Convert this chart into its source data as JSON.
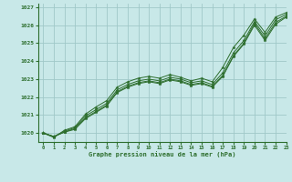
{
  "title": "Graphe pression niveau de la mer (hPa)",
  "background_color": "#c8e8e8",
  "grid_color": "#a0c8c8",
  "line_color": "#2d6e2d",
  "marker_color": "#2d6e2d",
  "xlim": [
    -0.5,
    23
  ],
  "ylim": [
    1019.5,
    1027.2
  ],
  "xticks": [
    0,
    1,
    2,
    3,
    4,
    5,
    6,
    7,
    8,
    9,
    10,
    11,
    12,
    13,
    14,
    15,
    16,
    17,
    18,
    19,
    20,
    21,
    22,
    23
  ],
  "yticks": [
    1020,
    1021,
    1022,
    1023,
    1024,
    1025,
    1026,
    1027
  ],
  "series": [
    [
      1020.0,
      1019.8,
      1020.05,
      1020.2,
      1020.8,
      1021.15,
      1021.5,
      1022.25,
      1022.55,
      1022.75,
      1022.85,
      1022.75,
      1022.95,
      1022.85,
      1022.65,
      1022.75,
      1022.55,
      1023.15,
      1024.25,
      1024.95,
      1026.0,
      1025.15,
      1026.05,
      1026.45
    ],
    [
      1020.0,
      1019.8,
      1020.05,
      1020.25,
      1020.85,
      1021.2,
      1021.55,
      1022.3,
      1022.6,
      1022.8,
      1022.9,
      1022.8,
      1023.0,
      1022.9,
      1022.7,
      1022.8,
      1022.6,
      1023.2,
      1024.3,
      1025.0,
      1026.1,
      1025.25,
      1026.15,
      1026.5
    ],
    [
      1020.0,
      1019.8,
      1020.1,
      1020.3,
      1020.95,
      1021.3,
      1021.65,
      1022.4,
      1022.7,
      1022.9,
      1023.0,
      1022.9,
      1023.1,
      1023.0,
      1022.8,
      1022.9,
      1022.7,
      1023.35,
      1024.45,
      1025.15,
      1026.2,
      1025.4,
      1026.3,
      1026.6
    ],
    [
      1020.0,
      1019.75,
      1020.15,
      1020.35,
      1021.05,
      1021.45,
      1021.8,
      1022.55,
      1022.85,
      1023.05,
      1023.15,
      1023.05,
      1023.25,
      1023.1,
      1022.9,
      1023.05,
      1022.85,
      1023.65,
      1024.75,
      1025.45,
      1026.35,
      1025.6,
      1026.45,
      1026.7
    ]
  ]
}
